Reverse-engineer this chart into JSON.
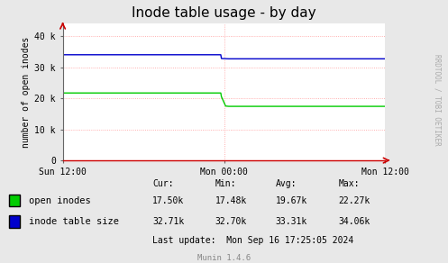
{
  "title": "Inode table usage - by day",
  "ylabel": "number of open inodes",
  "bg_color": "#e8e8e8",
  "plot_bg_color": "#ffffff",
  "grid_color": "#ff9999",
  "grid_style": ":",
  "xlim": [
    0,
    1
  ],
  "ylim": [
    0,
    44000
  ],
  "yticks": [
    0,
    10000,
    20000,
    30000,
    40000
  ],
  "ytick_labels": [
    "0",
    "10 k",
    "20 k",
    "30 k",
    "40 k"
  ],
  "xtick_positions": [
    0.0,
    0.5,
    1.0
  ],
  "xtick_labels": [
    "Sun 12:00",
    "Mon 00:00",
    "Mon 12:00"
  ],
  "green_line_color": "#00cc00",
  "blue_line_color": "#0000cc",
  "green_data_x": [
    0.0,
    0.49,
    0.492,
    0.505,
    0.515,
    1.0
  ],
  "green_data_y": [
    21700,
    21700,
    20500,
    17500,
    17400,
    17400
  ],
  "blue_data_x": [
    0.0,
    0.49,
    0.492,
    0.515,
    1.0
  ],
  "blue_data_y": [
    34000,
    34000,
    32800,
    32700,
    32700
  ],
  "legend_green_label": "open inodes",
  "legend_blue_label": "inode table size",
  "stats_header": [
    "Cur:",
    "Min:",
    "Avg:",
    "Max:"
  ],
  "stats_green": [
    "17.50k",
    "17.48k",
    "19.67k",
    "22.27k"
  ],
  "stats_blue": [
    "32.71k",
    "32.70k",
    "33.31k",
    "34.06k"
  ],
  "last_update": "Last update:  Mon Sep 16 17:25:05 2024",
  "munin_label": "Munin 1.4.6",
  "rrd_label": "RRDTOOL / TOBI OETIKER",
  "title_fontsize": 11,
  "axis_label_fontsize": 7,
  "tick_fontsize": 7,
  "legend_fontsize": 7.5,
  "stats_fontsize": 7,
  "munin_fontsize": 6.5,
  "rrd_fontsize": 5.5
}
